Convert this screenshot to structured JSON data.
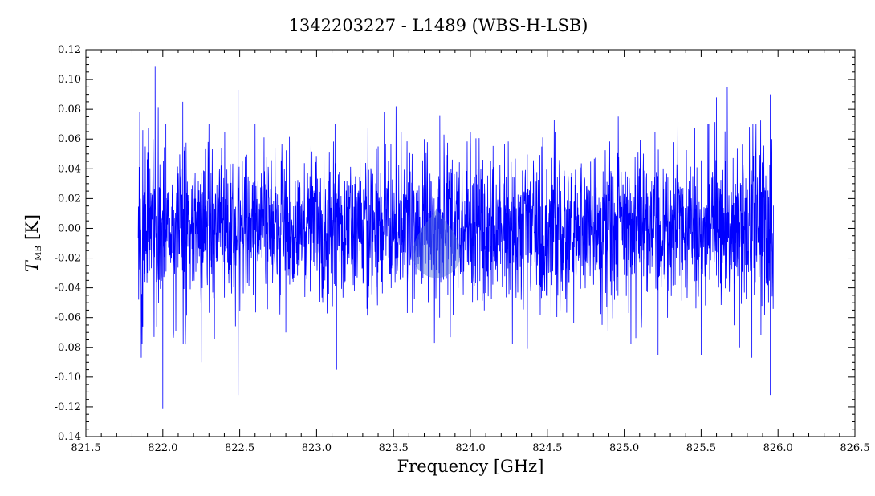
{
  "chart_data": {
    "type": "line",
    "title": "1342203227 - L1489 (WBS-H-LSB)",
    "xlabel": "Frequency [GHz]",
    "ylabel": {
      "symbol": "T",
      "subscript": "MB",
      "unit": " [K]"
    },
    "xlim": [
      821.5,
      826.5
    ],
    "ylim": [
      -0.14,
      0.12
    ],
    "x_ticks": [
      821.5,
      822.0,
      822.5,
      823.0,
      823.5,
      824.0,
      824.5,
      825.0,
      825.5,
      826.0,
      826.5
    ],
    "y_ticks": [
      -0.14,
      -0.12,
      -0.1,
      -0.08,
      -0.06,
      -0.04,
      -0.02,
      0.0,
      0.02,
      0.04,
      0.06,
      0.08,
      0.1,
      0.12
    ],
    "x_tick_labels": [
      "821.5",
      "822.0",
      "822.5",
      "823.0",
      "823.5",
      "824.0",
      "824.5",
      "825.0",
      "825.5",
      "826.0",
      "826.5"
    ],
    "y_tick_labels": [
      "-0.14",
      "-0.12",
      "-0.10",
      "-0.08",
      "-0.06",
      "-0.04",
      "-0.02",
      "0.00",
      "0.02",
      "0.04",
      "0.06",
      "0.08",
      "0.10",
      "0.12"
    ],
    "grid": false,
    "series": [
      {
        "color": "#0000ff",
        "x_range": [
          821.84,
          825.97
        ],
        "mean": 0.0,
        "noise_rms": 0.025,
        "points": [
          [
            821.85,
            0.078
          ],
          [
            821.86,
            -0.087
          ],
          [
            821.87,
            0.066
          ],
          [
            821.87,
            -0.066
          ],
          [
            821.95,
            0.109
          ],
          [
            821.96,
            -0.066
          ],
          [
            822.0,
            -0.121
          ],
          [
            822.02,
            0.07
          ],
          [
            822.07,
            -0.07
          ],
          [
            822.13,
            0.085
          ],
          [
            822.25,
            -0.09
          ],
          [
            822.3,
            0.07
          ],
          [
            822.49,
            0.093
          ],
          [
            822.49,
            -0.112
          ],
          [
            822.6,
            0.07
          ],
          [
            822.8,
            -0.07
          ],
          [
            823.13,
            -0.095
          ],
          [
            823.12,
            0.07
          ],
          [
            823.4,
            0.055
          ],
          [
            823.55,
            0.065
          ],
          [
            823.7,
            0.06
          ],
          [
            823.8,
            -0.06
          ],
          [
            824.0,
            0.065
          ],
          [
            824.37,
            -0.081
          ],
          [
            824.55,
            0.065
          ],
          [
            825.2,
            0.065
          ],
          [
            825.22,
            -0.085
          ],
          [
            825.5,
            -0.085
          ],
          [
            825.55,
            0.07
          ],
          [
            825.6,
            0.088
          ],
          [
            825.67,
            0.095
          ],
          [
            825.75,
            -0.08
          ],
          [
            825.83,
            -0.087
          ],
          [
            825.95,
            0.09
          ],
          [
            825.95,
            -0.112
          ],
          [
            825.96,
            0.06
          ]
        ]
      }
    ],
    "annotation": {
      "type": "drop-marker",
      "x": 823.78,
      "y": -0.015,
      "color": "#4f6fd8"
    }
  }
}
